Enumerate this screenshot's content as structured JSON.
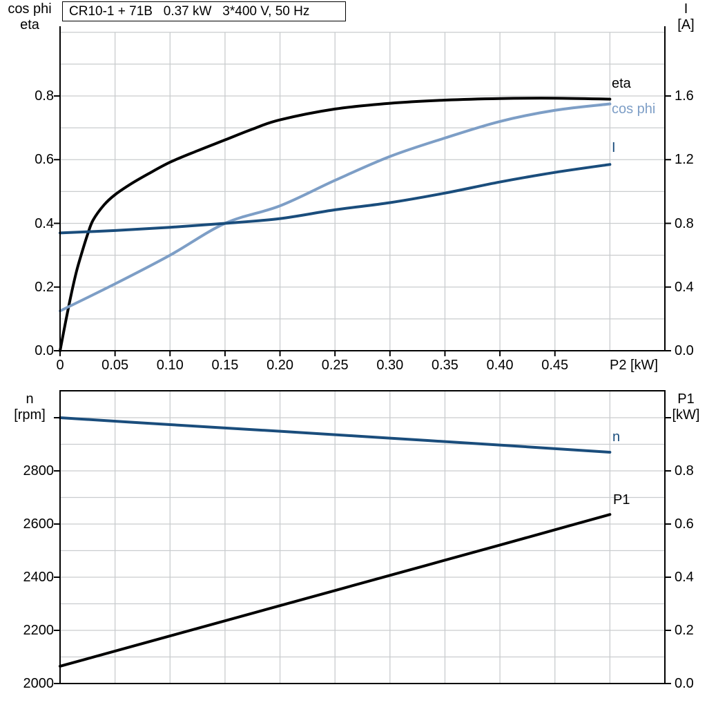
{
  "title_box": {
    "text": "CR10-1 + 71B   0.37 kW   3*400 V, 50 Hz"
  },
  "colors": {
    "black": "#000000",
    "light_blue": "#7D9EC6",
    "dark_blue": "#1A4D7C",
    "grid": "#C9CCCE",
    "background": "#FFFFFF"
  },
  "chart_data": [
    {
      "type": "line",
      "panel": "top",
      "title": "CR10-1 + 71B   0.37 kW   3*400 V, 50 Hz",
      "xlabel": "P2 [kW]",
      "ylabel_left": "cos phi\neta",
      "ylabel_right": "I\n[A]",
      "xlim": [
        0,
        0.55
      ],
      "ylim_left": [
        0,
        1.0
      ],
      "ylim_right": [
        0,
        2.0
      ],
      "grid": true,
      "x_grid_step": 0.05,
      "y_grid_step_left": 0.1,
      "x_ticks": [
        {
          "v": 0,
          "label": "0"
        },
        {
          "v": 0.05,
          "label": "0.05"
        },
        {
          "v": 0.1,
          "label": "0.10"
        },
        {
          "v": 0.15,
          "label": "0.15"
        },
        {
          "v": 0.2,
          "label": "0.20"
        },
        {
          "v": 0.25,
          "label": "0.25"
        },
        {
          "v": 0.3,
          "label": "0.30"
        },
        {
          "v": 0.35,
          "label": "0.35"
        },
        {
          "v": 0.4,
          "label": "0.40"
        },
        {
          "v": 0.45,
          "label": "0.45"
        }
      ],
      "y_ticks_left": [
        {
          "v": 0.0,
          "label": "0.0"
        },
        {
          "v": 0.2,
          "label": "0.2"
        },
        {
          "v": 0.4,
          "label": "0.4"
        },
        {
          "v": 0.6,
          "label": "0.6"
        },
        {
          "v": 0.8,
          "label": "0.8"
        }
      ],
      "y_ticks_right": [
        {
          "v": 0.0,
          "label": "0.0"
        },
        {
          "v": 0.4,
          "label": "0.4"
        },
        {
          "v": 0.8,
          "label": "0.8"
        },
        {
          "v": 1.2,
          "label": "1.2"
        },
        {
          "v": 1.6,
          "label": "1.6"
        }
      ],
      "series": [
        {
          "name": "eta",
          "axis": "left",
          "color": "#000000",
          "x": [
            0,
            0.005,
            0.01,
            0.015,
            0.02,
            0.025,
            0.03,
            0.04,
            0.05,
            0.065,
            0.08,
            0.1,
            0.125,
            0.15,
            0.175,
            0.2,
            0.25,
            0.3,
            0.35,
            0.4,
            0.45,
            0.5
          ],
          "values": [
            0,
            0.09,
            0.175,
            0.25,
            0.31,
            0.365,
            0.41,
            0.458,
            0.49,
            0.525,
            0.555,
            0.592,
            0.628,
            0.662,
            0.696,
            0.725,
            0.759,
            0.777,
            0.787,
            0.792,
            0.793,
            0.79
          ]
        },
        {
          "name": "cos phi",
          "axis": "left",
          "color": "#7D9EC6",
          "x": [
            0,
            0.05,
            0.1,
            0.15,
            0.2,
            0.25,
            0.3,
            0.35,
            0.4,
            0.45,
            0.5
          ],
          "values": [
            0.125,
            0.21,
            0.3,
            0.4,
            0.455,
            0.535,
            0.61,
            0.668,
            0.72,
            0.755,
            0.775
          ]
        },
        {
          "name": "I",
          "axis": "right",
          "color": "#1A4D7C",
          "x": [
            0,
            0.05,
            0.1,
            0.15,
            0.2,
            0.25,
            0.3,
            0.35,
            0.4,
            0.45,
            0.5
          ],
          "values": [
            0.74,
            0.755,
            0.775,
            0.8,
            0.83,
            0.885,
            0.93,
            0.99,
            1.06,
            1.12,
            1.17
          ]
        }
      ]
    },
    {
      "type": "line",
      "panel": "bottom",
      "xlabel": "",
      "ylabel_left": "n\n[rpm]",
      "ylabel_right": "P1\n[kW]",
      "xlim": [
        0,
        0.55
      ],
      "ylim_left": [
        2000,
        3000
      ],
      "ylim_right": [
        0,
        1.0
      ],
      "grid": true,
      "x_grid_step": 0.05,
      "y_grid_step_left": 100,
      "x_ticks": [],
      "y_ticks_left": [
        {
          "v": 2000,
          "label": "2000"
        },
        {
          "v": 2200,
          "label": "2200"
        },
        {
          "v": 2400,
          "label": "2400"
        },
        {
          "v": 2600,
          "label": "2600"
        },
        {
          "v": 2800,
          "label": "2800"
        },
        {
          "v": 3000,
          "label": ""
        }
      ],
      "y_ticks_right": [
        {
          "v": 0.0,
          "label": "0.0"
        },
        {
          "v": 0.2,
          "label": "0.2"
        },
        {
          "v": 0.4,
          "label": "0.4"
        },
        {
          "v": 0.6,
          "label": "0.6"
        },
        {
          "v": 0.8,
          "label": "0.8"
        },
        {
          "v": 1.0,
          "label": ""
        }
      ],
      "series": [
        {
          "name": "n",
          "axis": "left",
          "color": "#1A4D7C",
          "x": [
            0,
            0.1,
            0.2,
            0.3,
            0.4,
            0.5
          ],
          "values": [
            3000,
            2974,
            2949,
            2923,
            2897,
            2870
          ]
        },
        {
          "name": "P1",
          "axis": "right",
          "color": "#000000",
          "x": [
            0,
            0.1,
            0.2,
            0.3,
            0.4,
            0.5
          ],
          "values": [
            0.065,
            0.179,
            0.293,
            0.407,
            0.521,
            0.636
          ]
        }
      ]
    }
  ]
}
